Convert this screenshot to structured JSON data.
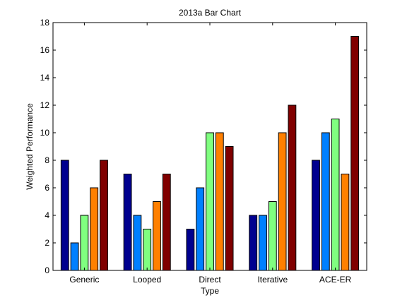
{
  "chart_data": {
    "type": "bar",
    "title": "2013a Bar Chart",
    "xlabel": "Type",
    "ylabel": "Weighted Performance",
    "categories": [
      "Generic",
      "Looped",
      "Direct",
      "Iterative",
      "ACE-ER"
    ],
    "ylim": [
      0,
      18
    ],
    "yticks": [
      0,
      2,
      4,
      6,
      8,
      10,
      12,
      14,
      16,
      18
    ],
    "grid": false,
    "legend": "none",
    "series_colors": [
      "#00008f",
      "#0080ff",
      "#80ff80",
      "#ff8000",
      "#800000"
    ],
    "series": [
      {
        "values": [
          8,
          7,
          3,
          4,
          8
        ]
      },
      {
        "values": [
          2,
          4,
          6,
          4,
          10
        ]
      },
      {
        "values": [
          4,
          3,
          10,
          5,
          11
        ]
      },
      {
        "values": [
          6,
          5,
          10,
          10,
          7
        ]
      },
      {
        "values": [
          8,
          7,
          9,
          12,
          17
        ]
      }
    ]
  }
}
